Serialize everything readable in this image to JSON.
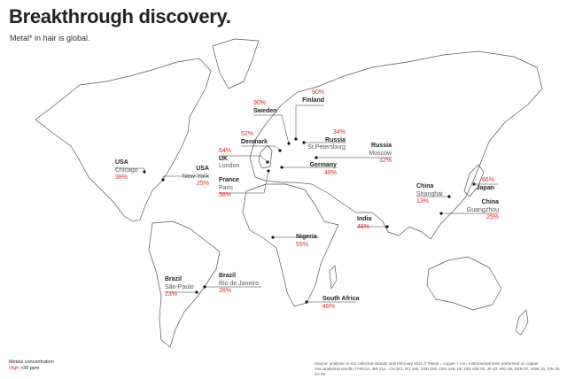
{
  "title": "Breakthrough discovery.",
  "subtitle": "Metal* in hair is global.",
  "colors": {
    "accent": "#d9302b",
    "land_outline": "#444444",
    "leader_line": "#333333"
  },
  "locations": [
    {
      "country": "USA",
      "city": "Chicago",
      "value": "38%"
    },
    {
      "country": "USA",
      "city": "New-York",
      "value": "25%"
    },
    {
      "country": "Sweden",
      "city": "",
      "value": "90%"
    },
    {
      "country": "Finland",
      "city": "",
      "value": "90%"
    },
    {
      "country": "Denmark",
      "city": "",
      "value": "52%"
    },
    {
      "country": "Russia",
      "city": "St.Petersburg",
      "value": "34%"
    },
    {
      "country": "Russia",
      "city": "Moscow",
      "value": "32%"
    },
    {
      "country": "UK",
      "city": "London",
      "value": "64%"
    },
    {
      "country": "France",
      "city": "Paris",
      "value": "58%"
    },
    {
      "country": "Germany",
      "city": "",
      "value": "48%"
    },
    {
      "country": "China",
      "city": "Shanghai",
      "value": "13%"
    },
    {
      "country": "Japan",
      "city": "",
      "value": "66%"
    },
    {
      "country": "China",
      "city": "Guangzhou",
      "value": "25%"
    },
    {
      "country": "India",
      "city": "",
      "value": "48%"
    },
    {
      "country": "Nigeria",
      "city": "",
      "value": "55%"
    },
    {
      "country": "Brazil",
      "city": "São-Paulo",
      "value": "23%"
    },
    {
      "country": "Brazil",
      "city": "Rio de Janeiro",
      "value": "26%"
    },
    {
      "country": "South Africa",
      "city": "",
      "value": "46%"
    }
  ],
  "legend": {
    "title": "Metals concentration",
    "high_label": "High",
    "high_desc": ">30 ppm"
  },
  "source": {
    "line1": "Source: analysis on xxx collected strands until February 2021 // *Metal = copper + iron. Instrumental tests performed on copper.",
    "line2": "Vivo analytical results // FR214 , BR 214 , CN 201, RU 190, USD 150, USA 149, UK 108, IND 92, JP 40, NIG 39, DEN 37, SWE 31, FIN 30, SA 29"
  }
}
